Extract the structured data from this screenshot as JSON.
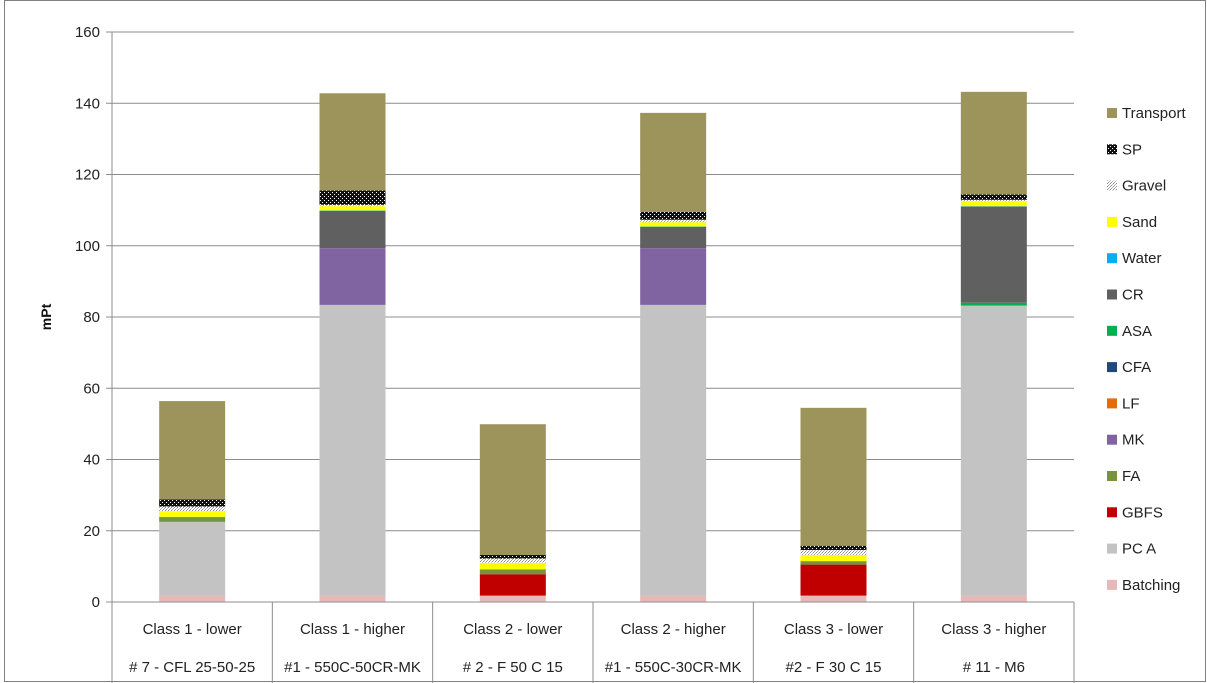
{
  "chart_data": {
    "type": "bar",
    "stacked": true,
    "title": "",
    "xlabel": "",
    "ylabel": "mPt",
    "ylim": [
      0,
      160
    ],
    "yticks": [
      0,
      20,
      40,
      60,
      80,
      100,
      120,
      140,
      160
    ],
    "grid": true,
    "legend_position": "right",
    "categories": [
      {
        "class": "Class 1 - lower",
        "mix": "# 7 - CFL 25-50-25"
      },
      {
        "class": "Class 1 - higher",
        "mix": "#1 - 550C-50CR-MK"
      },
      {
        "class": "Class 2 - lower",
        "mix": "# 2 - F 50 C 15"
      },
      {
        "class": "Class 2 - higher",
        "mix": "#1 - 550C-30CR-MK"
      },
      {
        "class": "Class 3 - lower",
        "mix": "#2 - F 30 C 15"
      },
      {
        "class": "Class 3 - higher",
        "mix": "# 11 - M6"
      }
    ],
    "series": [
      {
        "name": "Batching",
        "color": "#E6B9B8",
        "values": [
          1.8,
          1.8,
          1.8,
          1.8,
          1.8,
          1.8
        ]
      },
      {
        "name": "PC A",
        "color": "#C3C3C3",
        "values": [
          20.7,
          81.6,
          0,
          81.6,
          0,
          81.4
        ]
      },
      {
        "name": "GBFS",
        "color": "#C00000",
        "values": [
          0,
          0,
          6.0,
          0,
          8.7,
          0
        ]
      },
      {
        "name": "FA",
        "color": "#77933C",
        "values": [
          1.2,
          0,
          1.2,
          0,
          0.8,
          0
        ]
      },
      {
        "name": "MK",
        "color": "#8064A2",
        "values": [
          0,
          15.9,
          0,
          15.9,
          0,
          0
        ]
      },
      {
        "name": "LF",
        "color": "#E46C0A",
        "values": [
          0,
          0,
          0,
          0,
          0,
          0
        ]
      },
      {
        "name": "CFA",
        "color": "#1F497D",
        "values": [
          0,
          0,
          0,
          0,
          0,
          0
        ]
      },
      {
        "name": "ASA",
        "color": "#00B050",
        "values": [
          0,
          0,
          0,
          0,
          0,
          0.8
        ]
      },
      {
        "name": "CR",
        "color": "#606060",
        "values": [
          0,
          10.5,
          0,
          6.0,
          0,
          27.0
        ]
      },
      {
        "name": "Water",
        "color": "#00B0F0",
        "values": [
          0.2,
          0.1,
          0.2,
          0.1,
          0.2,
          0.1
        ]
      },
      {
        "name": "Sand",
        "color": "#FFFF00",
        "values": [
          1.6,
          1.2,
          1.8,
          1.2,
          1.7,
          1.4
        ]
      },
      {
        "name": "Gravel",
        "color": "#EDEDED",
        "values": [
          1.3,
          0.4,
          1.2,
          0.7,
          1.4,
          0.4
        ]
      },
      {
        "name": "SP",
        "color": "#111111",
        "values": [
          2.0,
          4.0,
          1.0,
          2.2,
          1.2,
          1.5
        ]
      },
      {
        "name": "Transport",
        "color": "#9C945A",
        "values": [
          27.6,
          27.3,
          36.7,
          27.8,
          38.7,
          28.8
        ]
      }
    ]
  }
}
